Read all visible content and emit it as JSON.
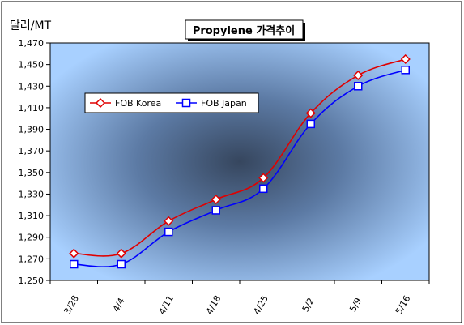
{
  "chart_data": {
    "type": "line",
    "title": "Propylene 가격추이",
    "ylabel": "달러/MT",
    "xlabel": "",
    "categories": [
      "3/28",
      "4/4",
      "4/11",
      "4/18",
      "4/25",
      "5/2",
      "5/9",
      "5/16"
    ],
    "ylim": [
      1250,
      1470
    ],
    "yticks": [
      1250,
      1270,
      1290,
      1310,
      1330,
      1350,
      1370,
      1390,
      1410,
      1430,
      1450,
      1470
    ],
    "grid": false,
    "legend_position": "left-upper inside plot",
    "series": [
      {
        "name": "FOB Korea",
        "values": [
          1275,
          1275,
          1305,
          1325,
          1345,
          1405,
          1440,
          1455
        ],
        "color": "#e00000",
        "marker": "diamond"
      },
      {
        "name": "FOB Japan",
        "values": [
          1265,
          1265,
          1295,
          1315,
          1335,
          1395,
          1430,
          1445
        ],
        "color": "#0000ff",
        "marker": "square"
      }
    ],
    "colors": {
      "plot_center": "#36465e",
      "plot_edge": "#a8d0ff"
    }
  }
}
